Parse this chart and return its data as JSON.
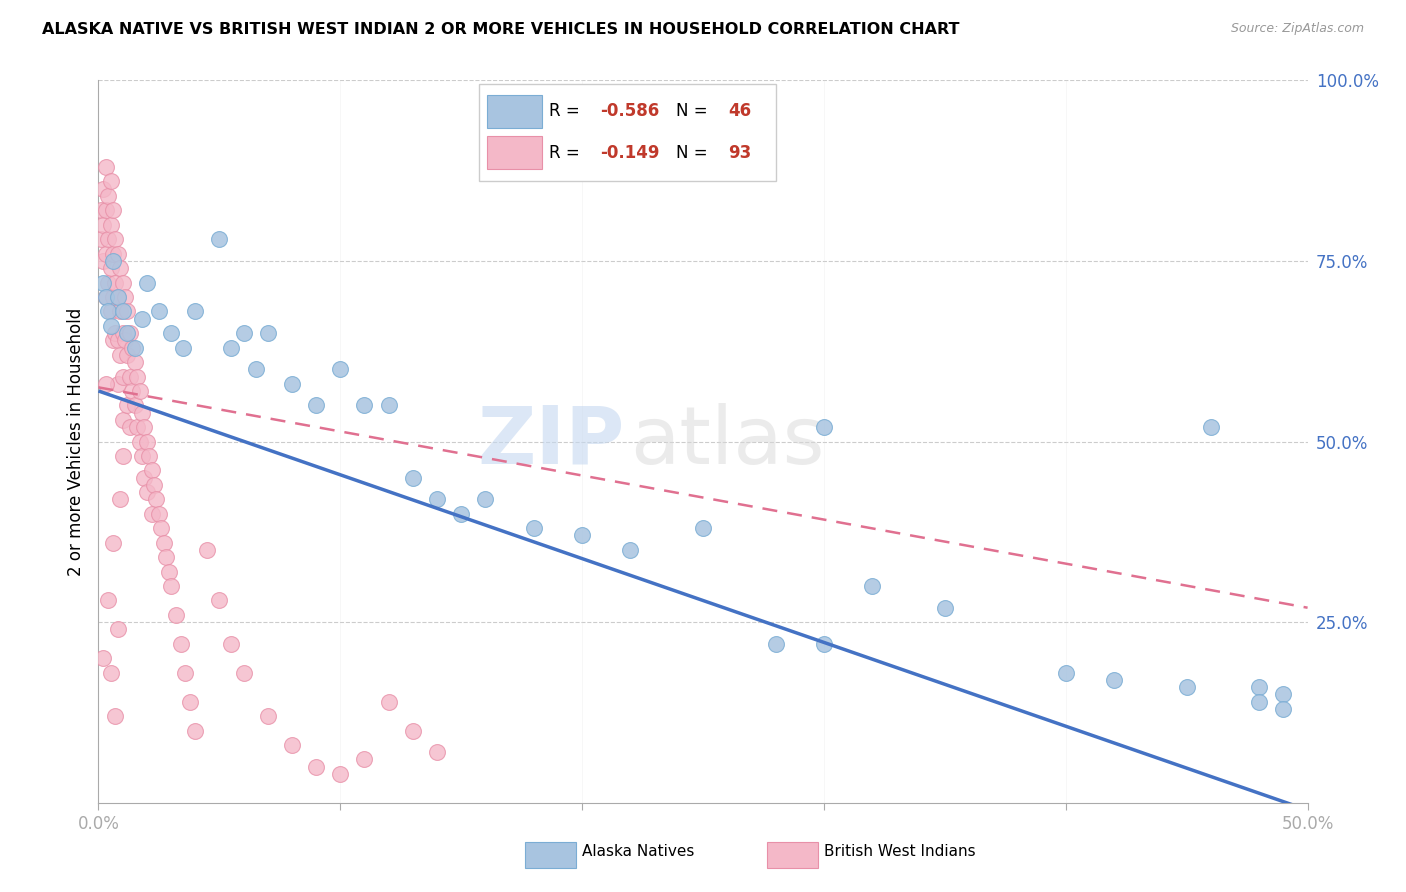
{
  "title": "ALASKA NATIVE VS BRITISH WEST INDIAN 2 OR MORE VEHICLES IN HOUSEHOLD CORRELATION CHART",
  "source": "Source: ZipAtlas.com",
  "ylabel": "2 or more Vehicles in Household",
  "watermark_zip": "ZIP",
  "watermark_atlas": "atlas",
  "legend_an_r": "R = ",
  "legend_an_rval": "-0.586",
  "legend_an_n": "N = ",
  "legend_an_nval": "46",
  "legend_bwi_r": "R = ",
  "legend_bwi_rval": "-0.149",
  "legend_bwi_n": "N = ",
  "legend_bwi_nval": "93",
  "an_color": "#a8c4e0",
  "an_edge": "#7badd4",
  "bwi_color": "#f4b8c8",
  "bwi_edge": "#e890a8",
  "line_blue": "#4472c4",
  "line_pink": "#e07090",
  "xmin": 0.0,
  "xmax": 0.5,
  "ymin": 0.0,
  "ymax": 1.0,
  "an_line_x0": 0.0,
  "an_line_y0": 0.57,
  "an_line_x1": 0.5,
  "an_line_y1": -0.01,
  "bwi_line_x0": 0.0,
  "bwi_line_y0": 0.575,
  "bwi_line_x1": 0.5,
  "bwi_line_y1": 0.27,
  "an_scatter_x": [
    0.002,
    0.003,
    0.004,
    0.005,
    0.006,
    0.008,
    0.01,
    0.012,
    0.015,
    0.018,
    0.02,
    0.025,
    0.03,
    0.035,
    0.04,
    0.05,
    0.055,
    0.06,
    0.065,
    0.07,
    0.08,
    0.09,
    0.1,
    0.11,
    0.12,
    0.13,
    0.14,
    0.15,
    0.16,
    0.18,
    0.2,
    0.22,
    0.25,
    0.28,
    0.3,
    0.32,
    0.35,
    0.3,
    0.4,
    0.42,
    0.45,
    0.46,
    0.48,
    0.49,
    0.48,
    0.49
  ],
  "an_scatter_y": [
    0.72,
    0.7,
    0.68,
    0.66,
    0.75,
    0.7,
    0.68,
    0.65,
    0.63,
    0.67,
    0.72,
    0.68,
    0.65,
    0.63,
    0.68,
    0.78,
    0.63,
    0.65,
    0.6,
    0.65,
    0.58,
    0.55,
    0.6,
    0.55,
    0.55,
    0.45,
    0.42,
    0.4,
    0.42,
    0.38,
    0.37,
    0.35,
    0.38,
    0.22,
    0.22,
    0.3,
    0.27,
    0.52,
    0.18,
    0.17,
    0.16,
    0.52,
    0.16,
    0.15,
    0.14,
    0.13
  ],
  "bwi_scatter_x": [
    0.001,
    0.001,
    0.002,
    0.002,
    0.002,
    0.003,
    0.003,
    0.003,
    0.003,
    0.004,
    0.004,
    0.004,
    0.005,
    0.005,
    0.005,
    0.005,
    0.006,
    0.006,
    0.006,
    0.006,
    0.007,
    0.007,
    0.007,
    0.008,
    0.008,
    0.008,
    0.008,
    0.009,
    0.009,
    0.009,
    0.01,
    0.01,
    0.01,
    0.01,
    0.011,
    0.011,
    0.012,
    0.012,
    0.012,
    0.013,
    0.013,
    0.013,
    0.014,
    0.014,
    0.015,
    0.015,
    0.016,
    0.016,
    0.017,
    0.017,
    0.018,
    0.018,
    0.019,
    0.019,
    0.02,
    0.02,
    0.021,
    0.022,
    0.022,
    0.023,
    0.024,
    0.025,
    0.026,
    0.027,
    0.028,
    0.029,
    0.03,
    0.032,
    0.034,
    0.036,
    0.038,
    0.04,
    0.045,
    0.05,
    0.055,
    0.06,
    0.07,
    0.08,
    0.09,
    0.1,
    0.11,
    0.12,
    0.13,
    0.14,
    0.002,
    0.003,
    0.004,
    0.005,
    0.006,
    0.007,
    0.008,
    0.009,
    0.01
  ],
  "bwi_scatter_y": [
    0.82,
    0.78,
    0.85,
    0.8,
    0.75,
    0.88,
    0.82,
    0.76,
    0.7,
    0.84,
    0.78,
    0.72,
    0.86,
    0.8,
    0.74,
    0.68,
    0.82,
    0.76,
    0.7,
    0.64,
    0.78,
    0.72,
    0.65,
    0.76,
    0.7,
    0.64,
    0.58,
    0.74,
    0.68,
    0.62,
    0.72,
    0.65,
    0.59,
    0.53,
    0.7,
    0.64,
    0.68,
    0.62,
    0.55,
    0.65,
    0.59,
    0.52,
    0.63,
    0.57,
    0.61,
    0.55,
    0.59,
    0.52,
    0.57,
    0.5,
    0.54,
    0.48,
    0.52,
    0.45,
    0.5,
    0.43,
    0.48,
    0.46,
    0.4,
    0.44,
    0.42,
    0.4,
    0.38,
    0.36,
    0.34,
    0.32,
    0.3,
    0.26,
    0.22,
    0.18,
    0.14,
    0.1,
    0.35,
    0.28,
    0.22,
    0.18,
    0.12,
    0.08,
    0.05,
    0.04,
    0.06,
    0.14,
    0.1,
    0.07,
    0.2,
    0.58,
    0.28,
    0.18,
    0.36,
    0.12,
    0.24,
    0.42,
    0.48
  ]
}
